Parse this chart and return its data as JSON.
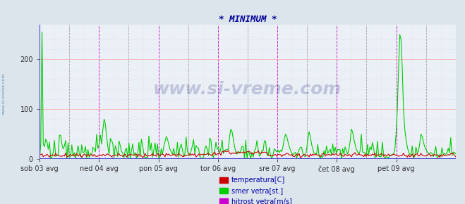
{
  "title": "* MINIMUM *",
  "title_color": "#000099",
  "background_color": "#dce4ec",
  "plot_background": "#eaf0f6",
  "xlabel_ticks": [
    "sob 03 avg",
    "ned 04 avg",
    "pon 05 avg",
    "tor 06 avg",
    "sre 07 avg",
    "čet 08 avg",
    "pet 09 avg"
  ],
  "ylabel_ticks": [
    0,
    100,
    200
  ],
  "ylim": [
    0,
    270
  ],
  "grid_color_h": "#ffaaaa",
  "grid_color_v_magenta": "#cc00cc",
  "grid_color_v_gray": "#aaaaaa",
  "watermark": "www.si-vreme.com",
  "watermark_color": "#000066",
  "watermark_alpha": 0.18,
  "left_label": "www.si-vreme.com",
  "left_label_color": "#4488bb",
  "legend_items": [
    {
      "label": "temperatura[C]",
      "color": "#cc0000"
    },
    {
      "label": "smer vetra[st.]",
      "color": "#00cc00"
    },
    {
      "label": "hitrost vetra[m/s]",
      "color": "#cc00cc"
    }
  ],
  "axis_color": "#4444cc",
  "n_days": 7,
  "n_points": 336
}
